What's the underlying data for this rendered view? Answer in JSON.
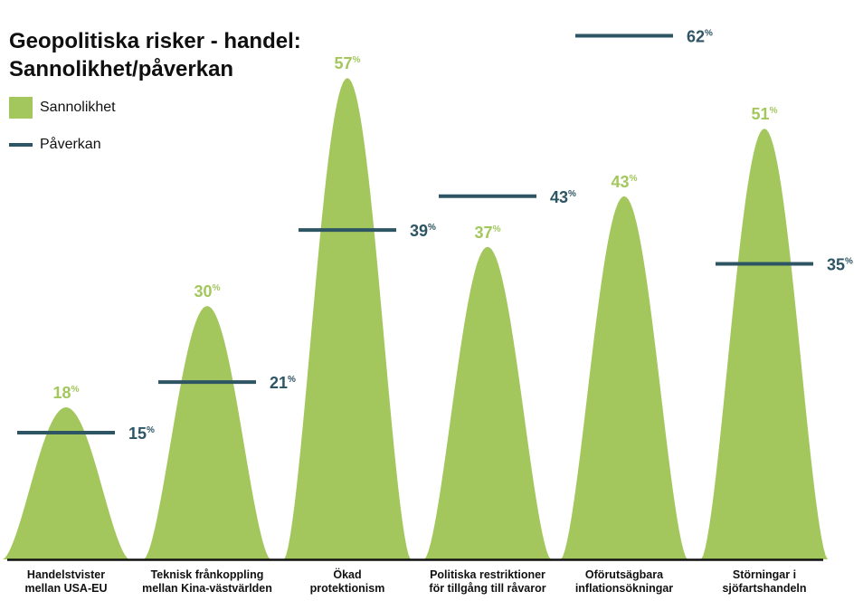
{
  "title_lines": [
    "Geopolitiska risker - handel:",
    "Sannolikhet/påverkan"
  ],
  "colors": {
    "sannolikhet": "#a3c75d",
    "paverkan": "#2d5563",
    "axis": "#111111"
  },
  "chart_data": {
    "type": "bar",
    "title": "Geopolitiska risker - handel: Sannolikhet/påverkan",
    "unit": "%",
    "legend": [
      "Sannolikhet",
      "Påverkan"
    ],
    "categories": [
      [
        "Handelstvister",
        "mellan USA-EU"
      ],
      [
        "Teknisk frånkoppling",
        "mellan Kina-västvärlden"
      ],
      [
        "Ökad",
        "protektionism"
      ],
      [
        "Politiska restriktioner",
        "för tillgång till råvaror"
      ],
      [
        "Oförutsägbara",
        "inflationsökningar"
      ],
      [
        "Störningar i",
        "sjöfartshandeln"
      ]
    ],
    "series": [
      {
        "name": "Sannolikhet",
        "values": [
          18,
          30,
          57,
          37,
          43,
          51
        ]
      },
      {
        "name": "Påverkan",
        "values": [
          15,
          21,
          39,
          43,
          62,
          35
        ]
      }
    ]
  }
}
